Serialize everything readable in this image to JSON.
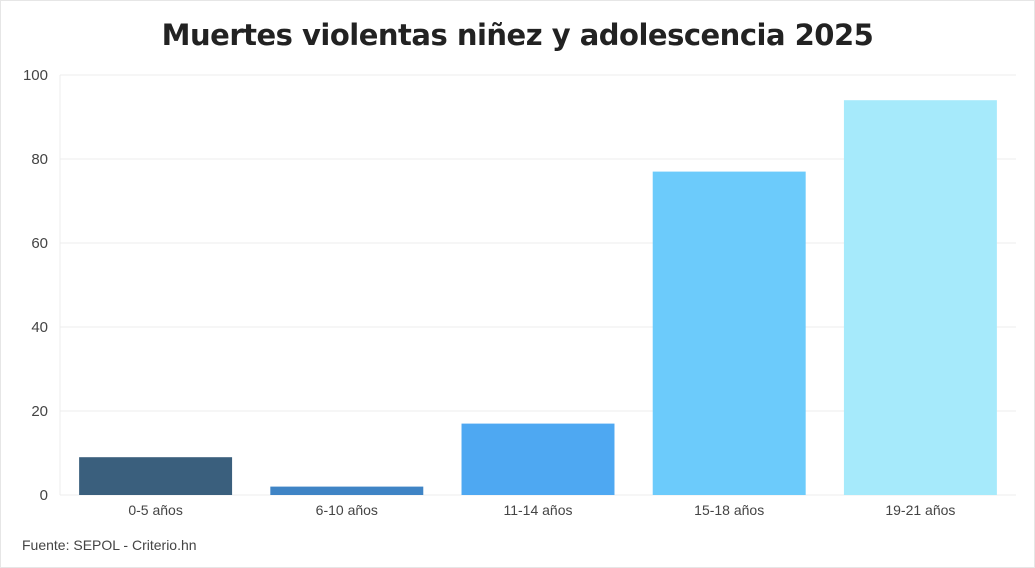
{
  "chart_data": {
    "type": "bar",
    "title": "Muertes violentas niñez y adolescencia 2025",
    "categories": [
      "0-5 años",
      "6-10 años",
      "11-14 años",
      "15-18 años",
      "19-21 años"
    ],
    "values": [
      9,
      2,
      17,
      77,
      94
    ],
    "colors": [
      "#3a5f7d",
      "#3f84c5",
      "#4ea8f2",
      "#6ccbfb",
      "#a6eafb"
    ],
    "xlabel": "",
    "ylabel": "",
    "ylim": [
      0,
      100
    ],
    "yticks": [
      0,
      20,
      40,
      60,
      80,
      100
    ],
    "grid": true,
    "legend": "none"
  },
  "source": "Fuente: SEPOL - Criterio.hn"
}
